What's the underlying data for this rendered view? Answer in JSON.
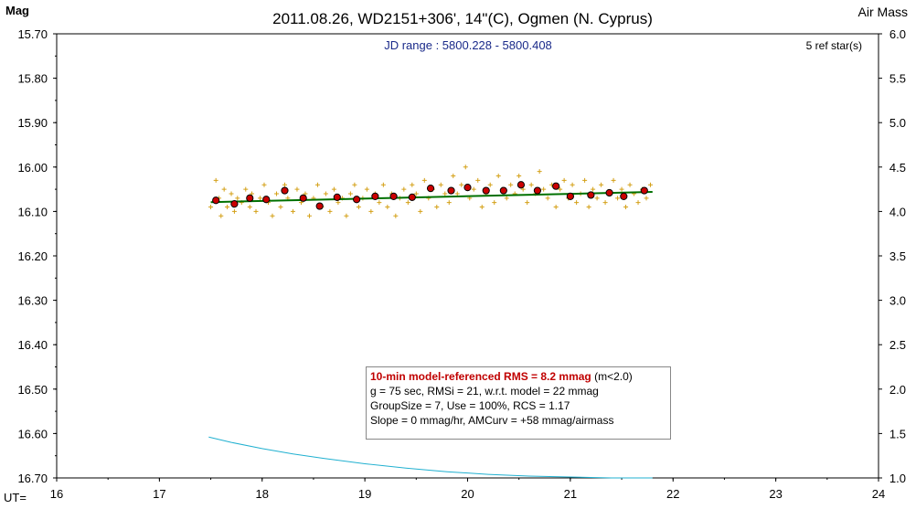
{
  "header": {
    "left_axis_title": "Mag",
    "title": "2011.08.26, WD2151+306', 14\"(C), Ogmen (N. Cyprus)",
    "right_axis_title": "Air Mass"
  },
  "plot_labels": {
    "jd_range": "JD range : 5800.228 - 5800.408",
    "ref_stars": "5 ref star(s)",
    "x_axis_prefix": "UT="
  },
  "stats": {
    "rms_line": "10-min model-referenced RMS = 8.2 mmag",
    "rms_suffix": "(m<2.0)",
    "line2": "g = 75 sec, RMSi = 21, w.r.t. model = 22 mmag",
    "line3": "GroupSize = 7, Use = 100%, RCS = 1.17",
    "line4": "Slope = 0 mmag/hr, AMCurv = +58 mmag/airmass"
  },
  "colors": {
    "raw_points": "#d4a017",
    "group_means": "#cc0000",
    "model_line": "#007000",
    "airmass_curve": "#20b0d0"
  },
  "chart_data": {
    "type": "scatter",
    "xlim": [
      16,
      24
    ],
    "ylim_mag": [
      15.7,
      16.7
    ],
    "ylim_airmass": [
      1.0,
      6.0
    ],
    "x_ticks": [
      "16",
      "17",
      "18",
      "19",
      "20",
      "21",
      "22",
      "23",
      "24"
    ],
    "y_ticks_mag": [
      "15.70",
      "15.80",
      "15.90",
      "16.00",
      "16.10",
      "16.20",
      "16.30",
      "16.40",
      "16.50",
      "16.60",
      "16.70"
    ],
    "y_ticks_airmass": [
      "6.0",
      "5.5",
      "5.0",
      "4.5",
      "4.0",
      "3.5",
      "3.0",
      "2.5",
      "2.0",
      "1.5",
      "1.0"
    ],
    "grid": false,
    "group_means": {
      "x": [
        17.55,
        17.73,
        17.88,
        18.04,
        18.22,
        18.4,
        18.56,
        18.73,
        18.92,
        19.1,
        19.28,
        19.46,
        19.64,
        19.84,
        20.0,
        20.18,
        20.35,
        20.52,
        20.68,
        20.86,
        21.0,
        21.2,
        21.38,
        21.52,
        21.72
      ],
      "y": [
        16.075,
        16.083,
        16.07,
        16.073,
        16.053,
        16.07,
        16.088,
        16.068,
        16.073,
        16.066,
        16.066,
        16.068,
        16.048,
        16.053,
        16.046,
        16.053,
        16.053,
        16.04,
        16.053,
        16.043,
        16.066,
        16.063,
        16.058,
        16.066,
        16.053
      ]
    },
    "raw_points": {
      "x": [
        17.5,
        17.55,
        17.58,
        17.6,
        17.63,
        17.66,
        17.7,
        17.73,
        17.76,
        17.8,
        17.84,
        17.88,
        17.9,
        17.94,
        17.98,
        18.02,
        18.06,
        18.1,
        18.14,
        18.18,
        18.22,
        18.25,
        18.3,
        18.34,
        18.38,
        18.42,
        18.46,
        18.5,
        18.54,
        18.58,
        18.62,
        18.66,
        18.7,
        18.74,
        18.78,
        18.82,
        18.86,
        18.9,
        18.94,
        18.98,
        19.02,
        19.06,
        19.1,
        19.14,
        19.18,
        19.22,
        19.26,
        19.3,
        19.34,
        19.38,
        19.42,
        19.46,
        19.5,
        19.54,
        19.58,
        19.62,
        19.66,
        19.7,
        19.74,
        19.78,
        19.82,
        19.86,
        19.9,
        19.94,
        19.98,
        20.02,
        20.06,
        20.1,
        20.14,
        20.18,
        20.22,
        20.26,
        20.3,
        20.34,
        20.38,
        20.42,
        20.46,
        20.5,
        20.54,
        20.58,
        20.62,
        20.66,
        20.7,
        20.74,
        20.78,
        20.82,
        20.86,
        20.9,
        20.94,
        20.98,
        21.02,
        21.06,
        21.1,
        21.14,
        21.18,
        21.22,
        21.26,
        21.3,
        21.34,
        21.38,
        21.42,
        21.46,
        21.5,
        21.54,
        21.58,
        21.62,
        21.66,
        21.7,
        21.74,
        21.78
      ],
      "y": [
        16.09,
        16.03,
        16.07,
        16.11,
        16.05,
        16.09,
        16.06,
        16.1,
        16.07,
        16.08,
        16.05,
        16.09,
        16.06,
        16.1,
        16.07,
        16.04,
        16.08,
        16.11,
        16.06,
        16.09,
        16.04,
        16.07,
        16.1,
        16.05,
        16.08,
        16.06,
        16.11,
        16.07,
        16.04,
        16.09,
        16.06,
        16.1,
        16.05,
        16.08,
        16.07,
        16.11,
        16.06,
        16.04,
        16.09,
        16.07,
        16.05,
        16.1,
        16.06,
        16.08,
        16.04,
        16.09,
        16.06,
        16.11,
        16.07,
        16.05,
        16.08,
        16.04,
        16.06,
        16.1,
        16.03,
        16.07,
        16.05,
        16.09,
        16.04,
        16.06,
        16.08,
        16.02,
        16.06,
        16.04,
        16.0,
        16.07,
        16.05,
        16.03,
        16.09,
        16.06,
        16.04,
        16.08,
        16.02,
        16.05,
        16.07,
        16.04,
        16.06,
        16.02,
        16.05,
        16.08,
        16.04,
        16.06,
        16.01,
        16.05,
        16.07,
        16.04,
        16.09,
        16.05,
        16.03,
        16.07,
        16.04,
        16.08,
        16.06,
        16.03,
        16.09,
        16.05,
        16.07,
        16.04,
        16.08,
        16.06,
        16.03,
        16.07,
        16.05,
        16.09,
        16.04,
        16.06,
        16.08,
        16.05,
        16.07,
        16.04
      ]
    },
    "model_line": {
      "x": [
        17.5,
        21.8
      ],
      "y": [
        16.079,
        16.056
      ]
    },
    "airmass_curve": {
      "x": [
        17.48,
        17.7,
        18.0,
        18.3,
        18.6,
        19.0,
        19.4,
        19.8,
        20.2,
        20.6,
        21.0,
        21.4,
        21.8
      ],
      "airmass": [
        1.46,
        1.4,
        1.33,
        1.27,
        1.22,
        1.16,
        1.11,
        1.07,
        1.04,
        1.02,
        1.01,
        1.0,
        1.0
      ]
    }
  }
}
